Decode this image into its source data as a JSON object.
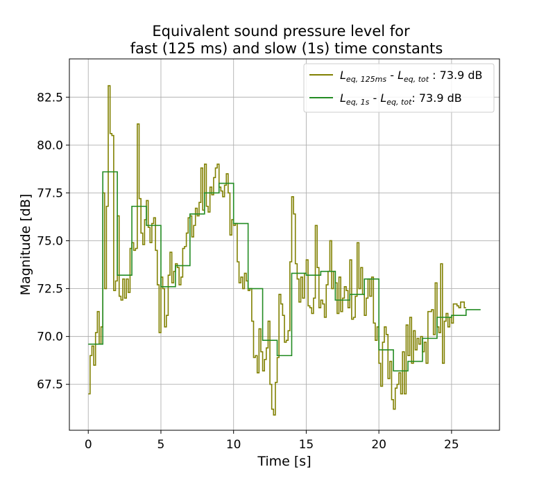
{
  "chart_data": {
    "type": "line",
    "step": true,
    "title": [
      "Equivalent sound pressure level for",
      "fast (125 ms) and slow (1s) time constants"
    ],
    "xlabel": "Time [s]",
    "ylabel": "Magnitude [dB]",
    "xlim": [
      -1.3,
      28.3
    ],
    "ylim": [
      65.1,
      84.5
    ],
    "xticks": [
      0,
      5,
      10,
      15,
      20,
      25
    ],
    "xtick_labels": [
      "0",
      "5",
      "10",
      "15",
      "20",
      "25"
    ],
    "yticks": [
      67.5,
      70.0,
      72.5,
      75.0,
      77.5,
      80.0,
      82.5
    ],
    "ytick_labels": [
      "67.5",
      "70.0",
      "72.5",
      "75.0",
      "77.5",
      "80.0",
      "82.5"
    ],
    "grid": true,
    "legend_position": "top-right",
    "series": [
      {
        "name": "L_eq,125ms - L_eq,tot : 73.9 dB",
        "legend_main": [
          "L",
          "eq, 125ms",
          " - ",
          "L",
          "eq, tot",
          " : 73.9 dB"
        ],
        "color": "#808000",
        "dt": 0.125,
        "x0": 0,
        "y": [
          67.0,
          69.0,
          69.5,
          68.5,
          70.2,
          71.3,
          69.6,
          70.5,
          77.5,
          72.5,
          76.8,
          83.1,
          80.6,
          80.5,
          72.4,
          72.9,
          76.3,
          72.1,
          71.9,
          73.0,
          72.0,
          73.0,
          72.3,
          74.6,
          74.9,
          74.5,
          74.6,
          81.1,
          77.2,
          75.4,
          74.8,
          76.1,
          77.1,
          75.7,
          74.9,
          75.9,
          76.2,
          74.5,
          72.7,
          70.2,
          73.1,
          72.5,
          70.5,
          71.1,
          73.2,
          74.4,
          72.8,
          73.4,
          73.8,
          73.6,
          72.7,
          73.1,
          74.6,
          74.7,
          75.4,
          76.2,
          76.3,
          75.2,
          75.8,
          76.7,
          76.3,
          77.0,
          78.8,
          76.6,
          79.0,
          76.8,
          76.5,
          77.8,
          77.4,
          78.3,
          78.8,
          79.0,
          77.8,
          77.6,
          77.3,
          77.9,
          78.5,
          77.5,
          75.3,
          76.1,
          75.8,
          75.9,
          73.9,
          72.8,
          73.1,
          72.5,
          73.3,
          72.9,
          72.4,
          72.5,
          70.8,
          68.9,
          69.0,
          68.1,
          70.4,
          69.2,
          68.2,
          68.8,
          69.4,
          70.8,
          67.5,
          66.2,
          65.9,
          67.6,
          68.9,
          72.2,
          71.7,
          71.1,
          69.7,
          69.8,
          70.3,
          73.9,
          77.3,
          76.4,
          73.8,
          73.0,
          71.8,
          73.1,
          72.0,
          73.3,
          74.0,
          71.6,
          71.5,
          71.2,
          72.0,
          75.8,
          73.6,
          71.5,
          71.9,
          71.7,
          71.0,
          72.7,
          73.4,
          75.0,
          72.5,
          73.4,
          72.8,
          71.2,
          73.1,
          71.3,
          72.0,
          72.6,
          72.4,
          71.5,
          74.0,
          70.9,
          71.0,
          72.1,
          74.9,
          72.5,
          73.6,
          72.2,
          71.1,
          72.0,
          73.0,
          72.1,
          73.1,
          70.7,
          69.8,
          70.5,
          68.6,
          67.4,
          69.7,
          70.5,
          70.1,
          67.8,
          68.7,
          66.7,
          66.2,
          67.3,
          67.5,
          68.1,
          67.0,
          69.2,
          67.0,
          70.6,
          69.0,
          71.0,
          68.6,
          70.3,
          69.3,
          69.9,
          69.6,
          70.0,
          69.2,
          69.7,
          68.6,
          71.3,
          71.3,
          71.4,
          70.1,
          72.8,
          70.5,
          70.2,
          73.8,
          68.6,
          70.8,
          71.2,
          70.5,
          71.0,
          70.7,
          71.7,
          71.7,
          71.6,
          71.5,
          71.8,
          71.8,
          71.5
        ]
      },
      {
        "name": "L_eq,1s - L_eq,tot: 73.9 dB",
        "legend_main": [
          "L",
          "eq, 1s",
          " - ",
          "L",
          "eq, tot",
          ": 73.9 dB"
        ],
        "color": "#228b22",
        "dt": 1,
        "x0": 0,
        "y": [
          69.6,
          78.6,
          73.2,
          76.8,
          75.8,
          72.6,
          73.7,
          76.4,
          77.5,
          78.0,
          75.9,
          72.5,
          69.8,
          69.0,
          73.3,
          73.2,
          73.4,
          71.9,
          72.2,
          73.0,
          69.3,
          68.2,
          68.7,
          69.9,
          71.0,
          71.1,
          71.4
        ]
      }
    ]
  }
}
